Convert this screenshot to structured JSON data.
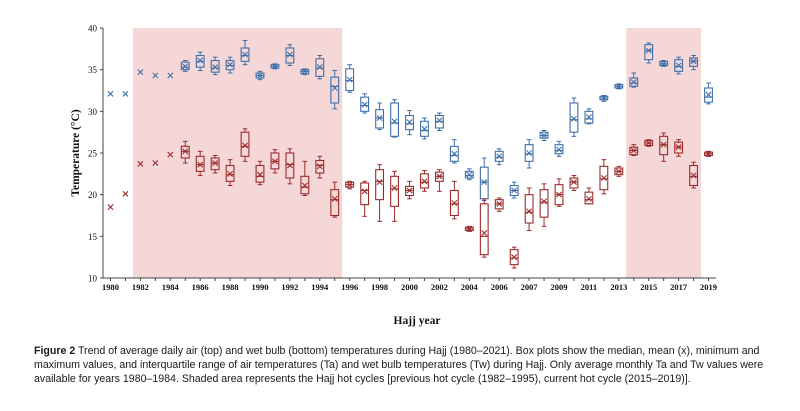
{
  "chart_data": {
    "type": "box",
    "ylabel": "Temperature (°C)",
    "xlabel": "Hajj year",
    "ylim": [
      10,
      40
    ],
    "yticks": [
      10,
      15,
      20,
      25,
      30,
      35,
      40
    ],
    "xtick_labels": [
      "1980",
      "1982",
      "1984",
      "1986",
      "1988",
      "1990",
      "1992",
      "1994",
      "1996",
      "1998",
      "2000",
      "2002",
      "2004",
      "2006",
      "2007",
      "2009",
      "2011",
      "2013",
      "2015",
      "2017",
      "2019"
    ],
    "shaded_periods": [
      {
        "name": "previous hot cycle",
        "x_start": 1981.5,
        "x_end": 1995.5,
        "color": "#f6d7d8"
      },
      {
        "name": "current hot cycle",
        "x_start": 2014.5,
        "x_end": 2019.5,
        "color": "#f6d7d8"
      }
    ],
    "series": [
      {
        "name": "Ta",
        "color": "#3f6fa8",
        "boxes": [
          {
            "x": 1980,
            "mean": 32.1
          },
          {
            "x": 1981,
            "mean": 32.1
          },
          {
            "x": 1982,
            "mean": 34.7
          },
          {
            "x": 1983,
            "mean": 34.3
          },
          {
            "x": 1984,
            "mean": 34.3
          },
          {
            "x": 1985,
            "min": 34.8,
            "q1": 35.0,
            "median": 35.3,
            "q3": 35.9,
            "max": 36.1,
            "mean": 35.4
          },
          {
            "x": 1986,
            "min": 34.9,
            "q1": 35.3,
            "median": 36.0,
            "q3": 36.7,
            "max": 37.1,
            "mean": 36.1
          },
          {
            "x": 1987,
            "min": 34.4,
            "q1": 34.7,
            "median": 35.2,
            "q3": 36.1,
            "max": 36.5,
            "mean": 35.3
          },
          {
            "x": 1988,
            "min": 34.6,
            "q1": 35.0,
            "median": 35.5,
            "q3": 36.1,
            "max": 36.5,
            "mean": 35.6
          },
          {
            "x": 1989,
            "min": 35.6,
            "q1": 36.0,
            "median": 36.7,
            "q3": 37.6,
            "max": 38.5,
            "mean": 36.8
          },
          {
            "x": 1990,
            "min": 33.8,
            "q1": 34.0,
            "median": 34.3,
            "q3": 34.6,
            "max": 34.8,
            "mean": 34.3
          },
          {
            "x": 1991,
            "min": 35.1,
            "q1": 35.2,
            "median": 35.4,
            "q3": 35.6,
            "max": 35.7,
            "mean": 35.4
          },
          {
            "x": 1992,
            "min": 35.5,
            "q1": 35.8,
            "median": 36.7,
            "q3": 37.6,
            "max": 38.0,
            "mean": 36.8
          },
          {
            "x": 1993,
            "min": 34.4,
            "q1": 34.5,
            "median": 34.8,
            "q3": 35.0,
            "max": 35.1,
            "mean": 34.8
          },
          {
            "x": 1994,
            "min": 33.9,
            "q1": 34.2,
            "median": 35.2,
            "q3": 36.3,
            "max": 36.7,
            "mean": 35.3
          },
          {
            "x": 1995,
            "min": 30.3,
            "q1": 31.0,
            "median": 33.0,
            "q3": 34.1,
            "max": 34.9,
            "mean": 32.8
          },
          {
            "x": 1996,
            "min": 32.3,
            "q1": 32.5,
            "median": 33.7,
            "q3": 35.1,
            "max": 35.6,
            "mean": 33.8
          },
          {
            "x": 1997,
            "min": 29.8,
            "q1": 30.0,
            "median": 30.7,
            "q3": 31.7,
            "max": 32.1,
            "mean": 30.8
          },
          {
            "x": 1998,
            "min": 27.8,
            "q1": 28.0,
            "median": 29.2,
            "q3": 30.2,
            "max": 31.0,
            "mean": 29.2
          },
          {
            "x": 1999,
            "min": 26.9,
            "q1": 27.0,
            "median": 28.6,
            "q3": 31.0,
            "max": 31.4,
            "mean": 28.8
          },
          {
            "x": 2000,
            "min": 27.2,
            "q1": 27.8,
            "median": 28.5,
            "q3": 29.5,
            "max": 30.1,
            "mean": 28.7
          },
          {
            "x": 2001,
            "min": 26.7,
            "q1": 27.0,
            "median": 27.7,
            "q3": 28.8,
            "max": 29.2,
            "mean": 27.9
          },
          {
            "x": 2002,
            "min": 27.7,
            "q1": 28.0,
            "median": 28.8,
            "q3": 29.5,
            "max": 29.8,
            "mean": 28.9
          },
          {
            "x": 2003,
            "min": 23.8,
            "q1": 24.0,
            "median": 24.7,
            "q3": 25.8,
            "max": 26.6,
            "mean": 24.9
          },
          {
            "x": 2004,
            "min": 21.8,
            "q1": 22.0,
            "median": 22.3,
            "q3": 22.8,
            "max": 23.1,
            "mean": 22.4
          },
          {
            "x": 2005,
            "min": 19.3,
            "q1": 19.5,
            "median": 21.5,
            "q3": 23.3,
            "max": 24.4,
            "mean": 21.5
          },
          {
            "x": 2006,
            "min": 23.6,
            "q1": 24.0,
            "median": 24.5,
            "q3": 25.2,
            "max": 25.5,
            "mean": 24.6
          },
          {
            "x": 2007,
            "min": 19.6,
            "q1": 19.9,
            "median": 20.5,
            "q3": 21.1,
            "max": 21.5,
            "mean": 20.5
          },
          {
            "x": 2008,
            "min": 23.2,
            "q1": 24.0,
            "median": 24.9,
            "q3": 26.0,
            "max": 26.6,
            "mean": 25.0
          },
          {
            "x": 2009,
            "min": 26.5,
            "q1": 26.8,
            "median": 27.1,
            "q3": 27.5,
            "max": 27.7,
            "mean": 27.1
          },
          {
            "x": 2010,
            "min": 24.6,
            "q1": 24.9,
            "median": 25.3,
            "q3": 26.0,
            "max": 26.4,
            "mean": 25.4
          },
          {
            "x": 2011,
            "min": 27.0,
            "q1": 27.5,
            "median": 29.0,
            "q3": 31.0,
            "max": 31.6,
            "mean": 29.1
          },
          {
            "x": 2012,
            "min": 28.5,
            "q1": 28.6,
            "median": 29.1,
            "q3": 30.0,
            "max": 30.3,
            "mean": 29.3
          },
          {
            "x": 2013,
            "min": 31.2,
            "q1": 31.4,
            "median": 31.6,
            "q3": 31.8,
            "max": 31.9,
            "mean": 31.6
          },
          {
            "x": 2014,
            "min": 32.7,
            "q1": 32.8,
            "median": 33.0,
            "q3": 33.2,
            "max": 33.3,
            "mean": 33.0
          },
          {
            "x": 2015,
            "min": 32.9,
            "q1": 33.0,
            "median": 33.4,
            "q3": 34.0,
            "max": 34.6,
            "mean": 33.5
          },
          {
            "x": 2016,
            "min": 35.8,
            "q1": 36.2,
            "median": 37.3,
            "q3": 38.0,
            "max": 38.2,
            "mean": 37.3
          },
          {
            "x": 2017,
            "min": 35.4,
            "q1": 35.5,
            "median": 35.7,
            "q3": 36.0,
            "max": 36.1,
            "mean": 35.7
          },
          {
            "x": 2018,
            "min": 34.5,
            "q1": 34.8,
            "median": 35.4,
            "q3": 36.2,
            "max": 36.5,
            "mean": 35.5
          },
          {
            "x": 2019,
            "min": 35.0,
            "q1": 35.4,
            "median": 36.0,
            "q3": 36.4,
            "max": 36.7,
            "mean": 36.0
          },
          {
            "x": 2020,
            "min": 30.9,
            "q1": 31.1,
            "median": 31.7,
            "q3": 32.8,
            "max": 33.4,
            "mean": 32.0
          }
        ]
      },
      {
        "name": "Tw",
        "color": "#9b2b2b",
        "boxes": [
          {
            "x": 1980,
            "mean": 18.5
          },
          {
            "x": 1981,
            "mean": 20.1
          },
          {
            "x": 1982,
            "mean": 23.7
          },
          {
            "x": 1983,
            "mean": 23.8
          },
          {
            "x": 1984,
            "mean": 24.8
          },
          {
            "x": 1985,
            "min": 23.8,
            "q1": 24.4,
            "median": 25.2,
            "q3": 25.8,
            "max": 26.4,
            "mean": 25.2
          },
          {
            "x": 1986,
            "min": 22.3,
            "q1": 22.8,
            "median": 23.6,
            "q3": 24.6,
            "max": 25.2,
            "mean": 23.6
          },
          {
            "x": 1987,
            "min": 22.6,
            "q1": 23.0,
            "median": 23.8,
            "q3": 24.4,
            "max": 24.7,
            "mean": 23.8
          },
          {
            "x": 1988,
            "min": 21.1,
            "q1": 21.6,
            "median": 22.4,
            "q3": 23.5,
            "max": 24.2,
            "mean": 22.5
          },
          {
            "x": 1989,
            "min": 24.0,
            "q1": 24.6,
            "median": 25.8,
            "q3": 27.5,
            "max": 27.9,
            "mean": 25.9
          },
          {
            "x": 1990,
            "min": 21.2,
            "q1": 21.5,
            "median": 22.2,
            "q3": 23.5,
            "max": 24.0,
            "mean": 22.4
          },
          {
            "x": 1991,
            "min": 22.6,
            "q1": 23.1,
            "median": 24.0,
            "q3": 25.0,
            "max": 25.4,
            "mean": 24.0
          },
          {
            "x": 1992,
            "min": 21.3,
            "q1": 22.0,
            "median": 23.6,
            "q3": 25.0,
            "max": 25.5,
            "mean": 23.5
          },
          {
            "x": 1993,
            "min": 19.9,
            "q1": 20.1,
            "median": 20.9,
            "q3": 22.2,
            "max": 24.0,
            "mean": 21.1
          },
          {
            "x": 1994,
            "min": 22.0,
            "q1": 22.6,
            "median": 23.5,
            "q3": 24.1,
            "max": 24.6,
            "mean": 23.4
          },
          {
            "x": 1995,
            "min": 17.3,
            "q1": 17.5,
            "median": 19.4,
            "q3": 20.6,
            "max": 21.5,
            "mean": 19.5
          },
          {
            "x": 1996,
            "min": 20.7,
            "q1": 20.9,
            "median": 21.2,
            "q3": 21.5,
            "max": 21.6,
            "mean": 21.2
          },
          {
            "x": 1997,
            "min": 17.4,
            "q1": 18.8,
            "median": 20.5,
            "q3": 21.4,
            "max": 21.6,
            "mean": 20.4
          },
          {
            "x": 1998,
            "min": 16.8,
            "q1": 19.4,
            "median": 21.6,
            "q3": 23.0,
            "max": 23.6,
            "mean": 21.5
          },
          {
            "x": 1999,
            "min": 16.8,
            "q1": 18.6,
            "median": 20.7,
            "q3": 22.2,
            "max": 22.8,
            "mean": 20.8
          },
          {
            "x": 2000,
            "min": 19.5,
            "q1": 19.9,
            "median": 20.5,
            "q3": 21.0,
            "max": 21.6,
            "mean": 20.5
          },
          {
            "x": 2001,
            "min": 20.4,
            "q1": 20.8,
            "median": 21.5,
            "q3": 22.5,
            "max": 22.9,
            "mean": 21.6
          },
          {
            "x": 2002,
            "min": 20.4,
            "q1": 21.6,
            "median": 22.2,
            "q3": 22.7,
            "max": 23.0,
            "mean": 22.2
          },
          {
            "x": 2003,
            "min": 17.1,
            "q1": 17.5,
            "median": 18.9,
            "q3": 20.5,
            "max": 21.6,
            "mean": 19.0
          },
          {
            "x": 2004,
            "min": 15.6,
            "q1": 15.7,
            "median": 15.9,
            "q3": 16.1,
            "max": 16.2,
            "mean": 15.9
          },
          {
            "x": 2005,
            "min": 12.5,
            "q1": 12.8,
            "median": 15.0,
            "q3": 18.9,
            "max": 19.5,
            "mean": 15.4
          },
          {
            "x": 2006,
            "min": 18.0,
            "q1": 18.3,
            "median": 18.9,
            "q3": 19.4,
            "max": 19.6,
            "mean": 18.9
          },
          {
            "x": 2007,
            "min": 11.2,
            "q1": 11.6,
            "median": 12.4,
            "q3": 13.4,
            "max": 13.7,
            "mean": 12.5
          },
          {
            "x": 2008,
            "min": 15.7,
            "q1": 16.6,
            "median": 17.9,
            "q3": 20.0,
            "max": 20.8,
            "mean": 18.0
          },
          {
            "x": 2009,
            "min": 16.2,
            "q1": 17.3,
            "median": 19.1,
            "q3": 20.6,
            "max": 21.3,
            "mean": 19.2
          },
          {
            "x": 2010,
            "min": 18.6,
            "q1": 18.8,
            "median": 20.0,
            "q3": 21.2,
            "max": 21.9,
            "mean": 20.0
          },
          {
            "x": 2011,
            "min": 20.5,
            "q1": 20.8,
            "median": 21.5,
            "q3": 22.0,
            "max": 22.3,
            "mean": 21.5
          },
          {
            "x": 2012,
            "min": 18.9,
            "q1": 18.9,
            "median": 19.4,
            "q3": 20.3,
            "max": 20.8,
            "mean": 19.5
          },
          {
            "x": 2013,
            "min": 20.1,
            "q1": 20.6,
            "median": 21.9,
            "q3": 23.4,
            "max": 24.2,
            "mean": 22.0
          },
          {
            "x": 2014,
            "min": 22.2,
            "q1": 22.4,
            "median": 22.8,
            "q3": 23.2,
            "max": 23.4,
            "mean": 22.8
          },
          {
            "x": 2015,
            "min": 24.7,
            "q1": 24.8,
            "median": 25.3,
            "q3": 25.7,
            "max": 26.0,
            "mean": 25.3
          },
          {
            "x": 2016,
            "min": 25.8,
            "q1": 25.9,
            "median": 26.2,
            "q3": 26.5,
            "max": 26.6,
            "mean": 26.2
          },
          {
            "x": 2017,
            "min": 24.0,
            "q1": 24.8,
            "median": 26.0,
            "q3": 27.0,
            "max": 27.4,
            "mean": 26.0
          },
          {
            "x": 2018,
            "min": 24.6,
            "q1": 25.0,
            "median": 25.7,
            "q3": 26.3,
            "max": 26.6,
            "mean": 25.7
          },
          {
            "x": 2019,
            "min": 20.8,
            "q1": 21.1,
            "median": 22.2,
            "q3": 23.5,
            "max": 23.9,
            "mean": 22.3
          },
          {
            "x": 2020,
            "min": 24.6,
            "q1": 24.7,
            "median": 24.9,
            "q3": 25.1,
            "max": 25.2,
            "mean": 24.9
          }
        ]
      }
    ]
  },
  "caption": {
    "label": "Figure 2",
    "text": " Trend of average daily air (top) and wet bulb (bottom) temperatures during Hajj (1980–2021). Box plots show the median, mean (x), minimum and maximum values, and interquartile range of air temperatures (Ta) and wet bulb temperatures (Tw) during Hajj. Only average monthly Ta and Tw values were available for years 1980–1984. Shaded area represents the Hajj hot cycles [previous hot cycle (1982–1995), current hot cycle (2015–2019)]."
  }
}
